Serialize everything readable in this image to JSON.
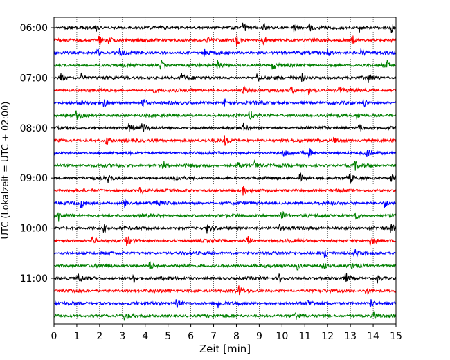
{
  "chart_data": {
    "type": "line",
    "title": "",
    "xlabel": "Zeit  [min]",
    "ylabel": "UTC (Lokalzeit = UTC + 02:00)",
    "xlim": [
      0,
      15
    ],
    "x_ticks": [
      "0",
      "1",
      "2",
      "3",
      "4",
      "5",
      "6",
      "7",
      "8",
      "9",
      "10",
      "11",
      "12",
      "13",
      "14",
      "15"
    ],
    "y_ticks": [
      "06:00",
      "07:00",
      "08:00",
      "09:00",
      "10:00",
      "11:00"
    ],
    "grid": "vertical dotted",
    "trace_colors": [
      "#000000",
      "#ff0000",
      "#0000ff",
      "#008000"
    ],
    "trace_interval_min": 15,
    "trace_start": "06:00",
    "trace_count": 24,
    "series": [
      {
        "start": "06:00",
        "color": "#000000",
        "events": [
          1.8,
          8.3,
          9.2,
          10.5,
          11.2,
          13.4,
          14.8
        ]
      },
      {
        "start": "06:15",
        "color": "#ff0000",
        "events": [
          2.0,
          2.4,
          6.7,
          8.0,
          9.2,
          13.1
        ]
      },
      {
        "start": "06:30",
        "color": "#0000ff",
        "events": [
          1.9,
          2.9,
          6.6,
          12.0,
          13.5
        ]
      },
      {
        "start": "06:45",
        "color": "#008000",
        "events": [
          4.7,
          7.2,
          9.6,
          14.6
        ]
      },
      {
        "start": "07:00",
        "color": "#000000",
        "events": [
          0.3,
          1.2,
          5.6,
          8.9,
          10.9,
          13.8
        ]
      },
      {
        "start": "07:15",
        "color": "#ff0000",
        "events": [
          4.3,
          8.3,
          10.4,
          11.2,
          12.5
        ]
      },
      {
        "start": "07:30",
        "color": "#0000ff",
        "events": [
          2.2,
          3.9,
          7.5,
          13.6
        ]
      },
      {
        "start": "07:45",
        "color": "#008000",
        "events": [
          1.0,
          8.6,
          13.3
        ]
      },
      {
        "start": "08:00",
        "color": "#000000",
        "events": [
          3.3,
          3.9,
          8.3,
          13.4
        ]
      },
      {
        "start": "08:15",
        "color": "#ff0000",
        "events": [
          2.3,
          7.5,
          12.3
        ]
      },
      {
        "start": "08:30",
        "color": "#0000ff",
        "events": [
          10.1,
          11.2,
          13.7
        ]
      },
      {
        "start": "08:45",
        "color": "#008000",
        "events": [
          4.8,
          8.1,
          8.8,
          13.2
        ]
      },
      {
        "start": "09:00",
        "color": "#000000",
        "events": [
          2.4,
          5.3,
          10.8,
          13.0,
          14.8
        ]
      },
      {
        "start": "09:15",
        "color": "#ff0000",
        "events": [
          3.8,
          8.3
        ]
      },
      {
        "start": "09:30",
        "color": "#0000ff",
        "events": [
          1.2,
          3.1,
          4.5,
          14.5
        ]
      },
      {
        "start": "09:45",
        "color": "#008000",
        "events": [
          0.2,
          10.0,
          13.2
        ]
      },
      {
        "start": "10:00",
        "color": "#000000",
        "events": [
          2.2,
          6.7,
          9.9,
          14.8
        ]
      },
      {
        "start": "10:15",
        "color": "#ff0000",
        "events": [
          1.7,
          3.2,
          8.5,
          13.9
        ]
      },
      {
        "start": "10:30",
        "color": "#0000ff",
        "events": [
          11.9,
          13.2
        ]
      },
      {
        "start": "10:45",
        "color": "#008000",
        "events": [
          4.2,
          10.7,
          11.8,
          13.1
        ]
      },
      {
        "start": "11:00",
        "color": "#000000",
        "events": [
          1.1,
          3.5,
          9.9,
          12.8,
          14.2
        ]
      },
      {
        "start": "11:15",
        "color": "#ff0000",
        "events": [
          8.1,
          13.7
        ]
      },
      {
        "start": "11:30",
        "color": "#0000ff",
        "events": [
          5.4,
          7.2,
          11.1,
          13.9
        ]
      },
      {
        "start": "11:45",
        "color": "#008000",
        "events": [
          3.1,
          10.6,
          14.0
        ]
      }
    ]
  }
}
